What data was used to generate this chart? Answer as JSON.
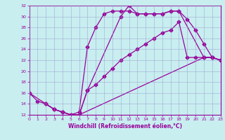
{
  "xlabel": "Windchill (Refroidissement éolien,°C)",
  "xlim": [
    0,
    23
  ],
  "ylim": [
    12,
    32
  ],
  "xticks": [
    0,
    1,
    2,
    3,
    4,
    5,
    6,
    7,
    8,
    9,
    10,
    11,
    12,
    13,
    14,
    15,
    16,
    17,
    18,
    19,
    20,
    21,
    22,
    23
  ],
  "yticks": [
    12,
    14,
    16,
    18,
    20,
    22,
    24,
    26,
    28,
    30,
    32
  ],
  "bg_color": "#c8eef0",
  "line_color": "#990099",
  "grid_color": "#9999cc",
  "line1_x": [
    0,
    1,
    2,
    3,
    4,
    5,
    6,
    7,
    11,
    12,
    13,
    14,
    15,
    16,
    17,
    18,
    19,
    20,
    21,
    22,
    23
  ],
  "line1_y": [
    16,
    14.5,
    14,
    13,
    12.5,
    12,
    12,
    16.5,
    30,
    32,
    30.5,
    30.5,
    30.5,
    30.5,
    31,
    31,
    29.5,
    27.5,
    25,
    22.5,
    22
  ],
  "line2_x": [
    2,
    3,
    4,
    5,
    6,
    7,
    8,
    9,
    10,
    11,
    12,
    13,
    14,
    15,
    16,
    17,
    18,
    21,
    22,
    23
  ],
  "line2_y": [
    14,
    13,
    12.5,
    12,
    12.5,
    24.5,
    28,
    30.5,
    31,
    31,
    31,
    30.5,
    30.5,
    30.5,
    30.5,
    31,
    31,
    22.5,
    22.5,
    22
  ],
  "line3_x": [
    0,
    2,
    3,
    4,
    5,
    6,
    21,
    22,
    23
  ],
  "line3_y": [
    16,
    14,
    13,
    12.5,
    12,
    12,
    22.5,
    22.5,
    22
  ],
  "line4_x": [
    6,
    7,
    8,
    9,
    10,
    11,
    12,
    13,
    14,
    15,
    16,
    17,
    18,
    19,
    20,
    21,
    22,
    23
  ],
  "line4_y": [
    12,
    16.5,
    17.5,
    19,
    20.5,
    22,
    23,
    24,
    25,
    26,
    27,
    27.5,
    29,
    22.5,
    22.5,
    22.5,
    22.5,
    22
  ]
}
